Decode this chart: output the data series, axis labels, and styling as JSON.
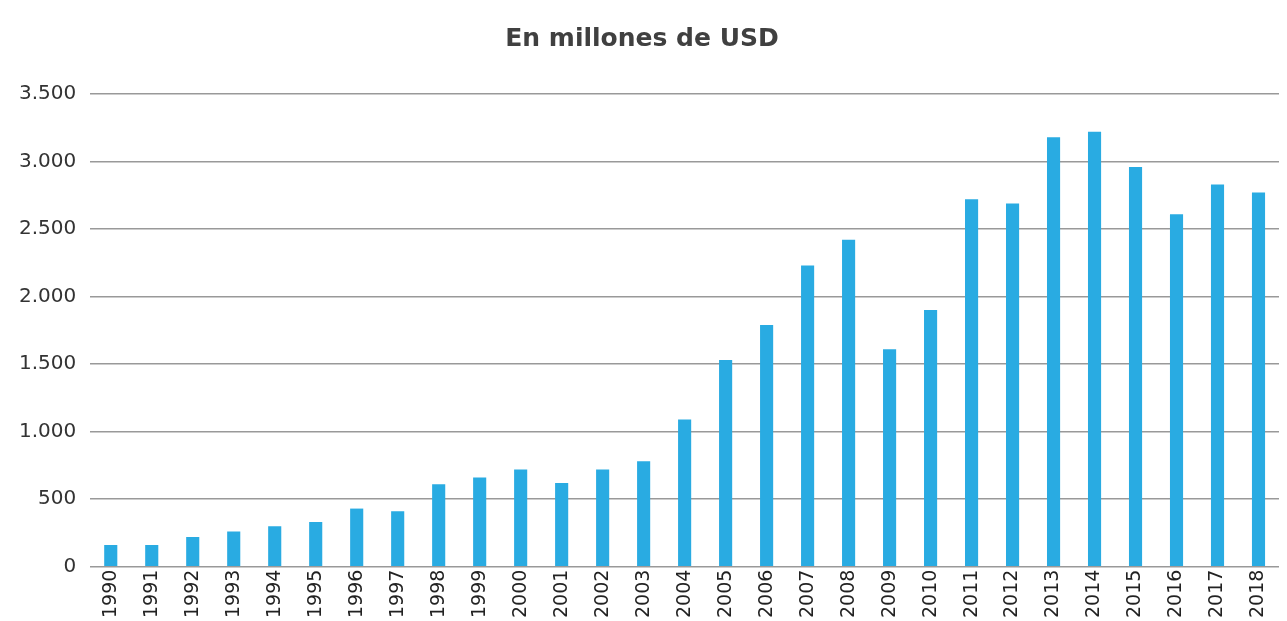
{
  "chart_data": {
    "type": "bar",
    "title": "En millones de USD",
    "categories": [
      "1990",
      "1991",
      "1992",
      "1993",
      "1994",
      "1995",
      "1996",
      "1997",
      "1998",
      "1999",
      "2000",
      "2001",
      "2002",
      "2003",
      "2004",
      "2005",
      "2006",
      "2007",
      "2008",
      "2009",
      "2010",
      "2011",
      "2012",
      "2013",
      "2014",
      "2015",
      "2016",
      "2017",
      "2018"
    ],
    "values": [
      160,
      160,
      220,
      260,
      300,
      330,
      430,
      410,
      610,
      660,
      720,
      620,
      720,
      780,
      1090,
      1530,
      1790,
      2230,
      2420,
      1610,
      1900,
      2720,
      2690,
      3180,
      3220,
      2960,
      2610,
      2830,
      2770
    ],
    "color": "#29abe2",
    "ylim": [
      0,
      3500
    ],
    "yticks": [
      0,
      500,
      {
        "value": 1000,
        "label": "1.000"
      },
      {
        "value": 1500,
        "label": "1.500"
      },
      {
        "value": 2000,
        "label": "2.000"
      },
      {
        "value": 2500,
        "label": "2.500"
      },
      {
        "value": 3000,
        "label": "3.000"
      },
      {
        "value": 3500,
        "label": "3.500"
      }
    ],
    "grid": "y",
    "legend": false
  }
}
